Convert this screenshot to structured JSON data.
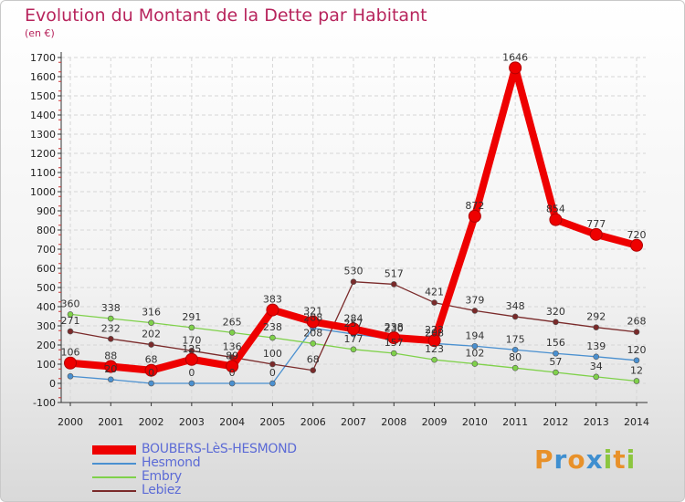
{
  "header": {
    "title": "Evolution du Montant de la Dette par Habitant",
    "subtitle": "(en €)"
  },
  "brand": {
    "text": "Proxiti",
    "letter_colors": [
      "#e8912a",
      "#3f8fd0",
      "#e8912a",
      "#3f8fd0",
      "#8cc63f",
      "#e8912a",
      "#8cc63f"
    ]
  },
  "chart_data": {
    "type": "line",
    "title": "Evolution du Montant de la Dette par Habitant",
    "subtitle": "(en €)",
    "xlabel": "",
    "ylabel": "",
    "x": [
      "2000",
      "2001",
      "2002",
      "2003",
      "2004",
      "2005",
      "2006",
      "2007",
      "2008",
      "2009",
      "2010",
      "2011",
      "2012",
      "2013",
      "2014"
    ],
    "ylim": [
      -100,
      1700
    ],
    "yticks": [
      -100,
      0,
      100,
      200,
      300,
      400,
      500,
      600,
      700,
      800,
      900,
      1000,
      1100,
      1200,
      1300,
      1400,
      1500,
      1600,
      1700
    ],
    "grid": true,
    "legend_position": "bottom-left",
    "series": [
      {
        "name": "BOUBERS-LèS-HESMOND",
        "color": "#ee0000",
        "emphasis": "thick",
        "values": [
          106,
          88,
          68,
          125,
          89,
          383,
          321,
          284,
          238,
          223,
          872,
          1646,
          854,
          777,
          720
        ],
        "labels": [
          "106",
          "88",
          "68",
          "125",
          "89",
          "383",
          "321",
          "284",
          "238",
          "223",
          "872",
          "1646",
          "854",
          "777",
          "720"
        ]
      },
      {
        "name": "Hesmond",
        "color": "#4a90d0",
        "values": [
          37,
          20,
          0,
          0,
          0,
          0,
          288,
          257,
          230,
          208,
          194,
          175,
          156,
          139,
          120
        ],
        "labels": [
          "",
          "20",
          "0",
          "0",
          "0",
          "0",
          "288",
          "257",
          "230",
          "208",
          "194",
          "175",
          "156",
          "139",
          "120"
        ]
      },
      {
        "name": "Embry",
        "color": "#7fd14a",
        "values": [
          360,
          338,
          316,
          291,
          265,
          238,
          208,
          177,
          157,
          123,
          102,
          80,
          57,
          34,
          12
        ],
        "labels": [
          "360",
          "338",
          "316",
          "291",
          "265",
          "238",
          "208",
          "177",
          "157",
          "123",
          "102",
          "80",
          "57",
          "34",
          "12"
        ]
      },
      {
        "name": "Lebiez",
        "color": "#7a2a2a",
        "values": [
          271,
          232,
          202,
          170,
          136,
          100,
          68,
          530,
          517,
          421,
          379,
          348,
          320,
          292,
          268
        ],
        "labels": [
          "271",
          "232",
          "202",
          "170",
          "136",
          "100",
          "68",
          "530",
          "517",
          "421",
          "379",
          "348",
          "320",
          "292",
          "268"
        ]
      }
    ]
  }
}
